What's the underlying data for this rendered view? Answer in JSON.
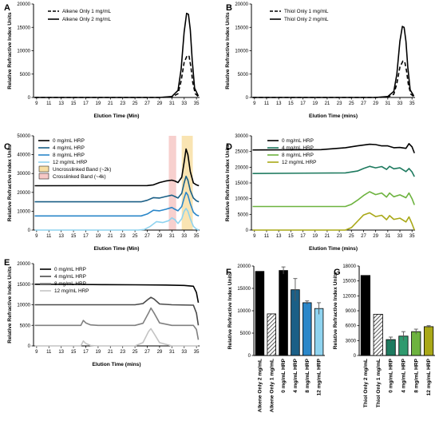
{
  "chart_data": [
    {
      "panel": "A",
      "type": "line",
      "xlabel": "Elution Time (Min)",
      "ylabel": "Relative Refractive Index Units",
      "xlim": [
        8.5,
        35.5
      ],
      "ylim": [
        0,
        20000
      ],
      "xticks": [
        "9",
        "11",
        "13",
        "15",
        "17",
        "19",
        "21",
        "23",
        "25",
        "27",
        "29",
        "31",
        "33",
        "35"
      ],
      "yticks": [
        "0",
        "5000",
        "10000",
        "15000",
        "20000"
      ],
      "series": [
        {
          "name": "Alkene Only 1 mg/mL",
          "style": "dashed",
          "color": "#000000",
          "x": [
            8.7,
            29,
            31,
            32,
            32.5,
            33,
            33.5,
            33.8,
            34.1,
            34.4,
            34.8,
            35.3
          ],
          "y": [
            0,
            0,
            100,
            800,
            3500,
            7500,
            9000,
            8800,
            6500,
            3200,
            800,
            200
          ]
        },
        {
          "name": "Alkene Only 2 mg/mL",
          "style": "solid",
          "color": "#000000",
          "x": [
            8.7,
            29,
            31,
            32,
            32.5,
            33,
            33.4,
            33.7,
            34.0,
            34.3,
            34.7,
            35.3
          ],
          "y": [
            0,
            0,
            200,
            1500,
            6000,
            14000,
            18000,
            17800,
            14500,
            8000,
            2000,
            300
          ]
        }
      ]
    },
    {
      "panel": "B",
      "type": "line",
      "xlabel": "Elution Time (mins)",
      "ylabel": "Relative Refractive Index Units",
      "xlim": [
        8.5,
        35.5
      ],
      "ylim": [
        0,
        20000
      ],
      "xticks": [
        "9",
        "11",
        "13",
        "15",
        "17",
        "19",
        "21",
        "23",
        "25",
        "27",
        "29",
        "31",
        "33",
        "35"
      ],
      "yticks": [
        "0",
        "5000",
        "10000",
        "15000",
        "20000"
      ],
      "series": [
        {
          "name": "Thiol Only 1 mg/mL",
          "style": "dashed",
          "color": "#000000",
          "x": [
            8.7,
            29,
            31,
            32,
            32.5,
            33,
            33.5,
            33.8,
            34.1,
            34.4,
            34.8,
            35.3
          ],
          "y": [
            0,
            0,
            100,
            700,
            3000,
            6500,
            7800,
            7600,
            5600,
            2800,
            700,
            200
          ]
        },
        {
          "name": "Thiol Only 2 mg/mL",
          "style": "solid",
          "color": "#000000",
          "x": [
            8.7,
            29,
            31,
            32,
            32.5,
            33,
            33.4,
            33.7,
            34.0,
            34.3,
            34.7,
            35.3
          ],
          "y": [
            0,
            0,
            200,
            1300,
            5000,
            12000,
            15200,
            15000,
            12000,
            6500,
            1600,
            300
          ]
        }
      ]
    },
    {
      "panel": "C",
      "type": "line",
      "xlabel": "Elution Time (Min)",
      "ylabel": "Relative Refractive Index Units",
      "xlim": [
        8.5,
        35.5
      ],
      "ylim": [
        0,
        50000
      ],
      "xticks": [
        "9",
        "11",
        "13",
        "15",
        "17",
        "19",
        "21",
        "23",
        "25",
        "27",
        "29",
        "31",
        "33",
        "35"
      ],
      "yticks": [
        "0",
        "10000",
        "20000",
        "30000",
        "40000",
        "50000"
      ],
      "bands": [
        {
          "name": "Uncrosslinked Band (~2k)",
          "x0": 32.6,
          "x1": 34.4,
          "color": "#f8dfa4"
        },
        {
          "name": "Crosslinked Band (~4k)",
          "x0": 30.5,
          "x1": 31.7,
          "color": "#f6c8c6"
        }
      ],
      "series": [
        {
          "name": "0 mg/mL HRP",
          "color": "#000000",
          "x": [
            8.7,
            27,
            28,
            29,
            30,
            31,
            31.5,
            32,
            32.6,
            33,
            33.3,
            33.6,
            34,
            34.5,
            35,
            35.4
          ],
          "y": [
            23500,
            23600,
            24000,
            25200,
            26000,
            26500,
            26000,
            25200,
            28000,
            36000,
            43000,
            40000,
            31000,
            25000,
            24000,
            23500
          ]
        },
        {
          "name": "4 mg/mL HRP",
          "color": "#1b5f86",
          "x": [
            8.7,
            26,
            27,
            28,
            29,
            30,
            31,
            31.5,
            32,
            32.6,
            33,
            33.3,
            33.6,
            34,
            34.5,
            35,
            35.4
          ],
          "y": [
            15000,
            15000,
            15800,
            17200,
            17000,
            17800,
            18500,
            17800,
            17000,
            19500,
            25000,
            28500,
            26500,
            21000,
            17000,
            15500,
            15000
          ]
        },
        {
          "name": "8 mg/mL HRP",
          "color": "#2b87c9",
          "x": [
            8.7,
            26,
            27,
            28,
            29,
            30,
            31,
            31.5,
            32,
            32.6,
            33,
            33.3,
            33.6,
            34,
            34.5,
            35,
            35.4
          ],
          "y": [
            7500,
            7500,
            8500,
            10500,
            10200,
            11000,
            12000,
            11000,
            10200,
            12500,
            17000,
            20000,
            18500,
            14000,
            9500,
            8000,
            7500
          ]
        },
        {
          "name": "12 mg/mL HRP",
          "color": "#8fd3ef",
          "x": [
            8.7,
            25.5,
            26.5,
            27.5,
            28.5,
            29.5,
            30.5,
            31,
            31.5,
            32,
            32.6,
            33,
            33.3,
            33.6,
            34,
            34.5,
            35,
            35.4
          ],
          "y": [
            0,
            0,
            300,
            2000,
            4500,
            4000,
            5000,
            6500,
            5500,
            3500,
            6000,
            10000,
            11500,
            10000,
            6000,
            2000,
            500,
            0
          ]
        }
      ]
    },
    {
      "panel": "D",
      "type": "line",
      "xlabel": "Elution Time (mins)",
      "ylabel": "Relative Refractive Index Units",
      "xlim": [
        8.5,
        35.5
      ],
      "ylim": [
        0,
        30000
      ],
      "xticks": [
        "9",
        "11",
        "13",
        "15",
        "17",
        "19",
        "21",
        "23",
        "25",
        "27",
        "29",
        "31",
        "33",
        "35"
      ],
      "yticks": [
        "0",
        "5000",
        "10000",
        "15000",
        "20000",
        "25000",
        "30000"
      ],
      "series": [
        {
          "name": "0 mg/mL HRP",
          "color": "#000000",
          "x": [
            8.7,
            20,
            24,
            26,
            28,
            29,
            30,
            31,
            32,
            33,
            34,
            34.5,
            35,
            35.4
          ],
          "y": [
            25500,
            25600,
            26200,
            26800,
            27300,
            27200,
            26800,
            26800,
            26200,
            26300,
            26000,
            27500,
            26500,
            24500
          ]
        },
        {
          "name": "4 mg/mL HRP",
          "color": "#1e7a5f",
          "x": [
            8.7,
            24,
            26,
            27,
            28,
            29,
            30,
            30.8,
            31.3,
            32,
            33,
            34,
            34.5,
            35,
            35.4
          ],
          "y": [
            18000,
            18200,
            18800,
            19600,
            20300,
            19800,
            20200,
            19300,
            20300,
            19500,
            19800,
            18600,
            19600,
            18500,
            17000
          ]
        },
        {
          "name": "8 mg/mL HRP",
          "color": "#6db33f",
          "x": [
            8.7,
            24,
            25,
            26,
            27,
            28,
            29,
            30,
            30.8,
            31.3,
            32,
            33,
            34,
            34.5,
            35,
            35.4
          ],
          "y": [
            7500,
            7500,
            8200,
            9500,
            11000,
            12200,
            11300,
            11800,
            10500,
            11800,
            10600,
            11200,
            10300,
            11800,
            10000,
            8000
          ]
        },
        {
          "name": "12 mg/mL HRP",
          "color": "#a9a817",
          "x": [
            8.7,
            24,
            25,
            26,
            27,
            28,
            29,
            30,
            30.8,
            31.3,
            32,
            33,
            34,
            34.5,
            35,
            35.4
          ],
          "y": [
            0,
            0,
            800,
            2800,
            4800,
            5500,
            4300,
            4700,
            3300,
            4600,
            3400,
            3800,
            2600,
            4200,
            2000,
            0
          ]
        }
      ]
    },
    {
      "panel": "E",
      "type": "line",
      "xlabel": "Elution Time (mins)",
      "ylabel": "Relative Refractive Index Units",
      "xlim": [
        8.5,
        35.5
      ],
      "ylim": [
        0,
        20000
      ],
      "xticks": [
        "9",
        "11",
        "13",
        "15",
        "17",
        "19",
        "21",
        "23",
        "25",
        "27",
        "29",
        "31",
        "33",
        "35"
      ],
      "yticks": [
        "0",
        "5000",
        "10000",
        "15000",
        "20000"
      ],
      "series": [
        {
          "name": "0 mg/mL HRP",
          "color": "#000000",
          "x": [
            8.7,
            15,
            20,
            25,
            30,
            33,
            34.5,
            35,
            35.3
          ],
          "y": [
            15000,
            14950,
            14900,
            14850,
            14800,
            14700,
            14500,
            13000,
            10500
          ]
        },
        {
          "name": "4 mg/mL HRP",
          "color": "#4a4a4a",
          "x": [
            8.7,
            25,
            26.3,
            27.2,
            27.6,
            28.1,
            29,
            31,
            34.5,
            35,
            35.3
          ],
          "y": [
            10000,
            10000,
            10300,
            11400,
            11800,
            11400,
            10200,
            10000,
            9900,
            8000,
            5000
          ]
        },
        {
          "name": "8 mg/mL HRP",
          "color": "#808080",
          "x": [
            8.7,
            16.2,
            16.6,
            17.0,
            17.8,
            19,
            25,
            26.3,
            27.2,
            27.6,
            28.1,
            29,
            31,
            34.5,
            35,
            35.3
          ],
          "y": [
            5000,
            5000,
            6200,
            5600,
            5100,
            5000,
            5000,
            5500,
            8000,
            9200,
            8000,
            5600,
            5000,
            5000,
            4000,
            1500
          ]
        },
        {
          "name": "12 mg/mL HRP",
          "color": "#c4c4c4",
          "x": [
            8.7,
            16.2,
            16.6,
            17.0,
            17.8,
            19,
            25,
            26.3,
            27.2,
            27.6,
            28.1,
            29,
            31,
            34.5,
            35,
            35.3
          ],
          "y": [
            0,
            0,
            1200,
            600,
            100,
            0,
            0,
            800,
            3500,
            4200,
            3000,
            800,
            0,
            0,
            0,
            0
          ]
        }
      ]
    },
    {
      "panel": "F",
      "type": "bar",
      "ylabel": "Relative Refractive Index Units",
      "ylim": [
        0,
        20000
      ],
      "yticks": [
        "0",
        "5000",
        "10000",
        "15000",
        "20000"
      ],
      "categories": [
        "Alkene Only 2 mg/mL",
        "Alkene Only 1 mg/mL",
        "0 mg/mL HRP",
        "4 mg/mL HRP",
        "8 mg/mL HRP",
        "12 mg/mL HRP"
      ],
      "values": [
        18800,
        9300,
        19000,
        14700,
        11800,
        10500
      ],
      "errors": [
        0,
        0,
        800,
        2500,
        400,
        1300
      ],
      "fills": [
        "#000000",
        "hatch",
        "#000000",
        "#1b5f86",
        "#2b87c9",
        "#8fd3ef"
      ]
    },
    {
      "panel": "G",
      "type": "bar",
      "ylabel": "Relative Refractive Index Units",
      "ylim": [
        0,
        18000
      ],
      "yticks": [
        "0",
        "3000",
        "6000",
        "9000",
        "12000",
        "15000",
        "18000"
      ],
      "categories": [
        "Thiol Only 2 mg/mL",
        "Thiol Only 1 mg/mL",
        "0 mg/mL HRP",
        "4 mg/mL HRP",
        "8 mg/mL HRP",
        "12 mg/mL HRP"
      ],
      "values": [
        16100,
        8300,
        3200,
        3900,
        4800,
        5800
      ],
      "errors": [
        0,
        0,
        500,
        900,
        500,
        200
      ],
      "fills": [
        "#000000",
        "hatch",
        "#1e7a5f",
        "#2f9a6e",
        "#6db33f",
        "#a9a817"
      ]
    }
  ]
}
